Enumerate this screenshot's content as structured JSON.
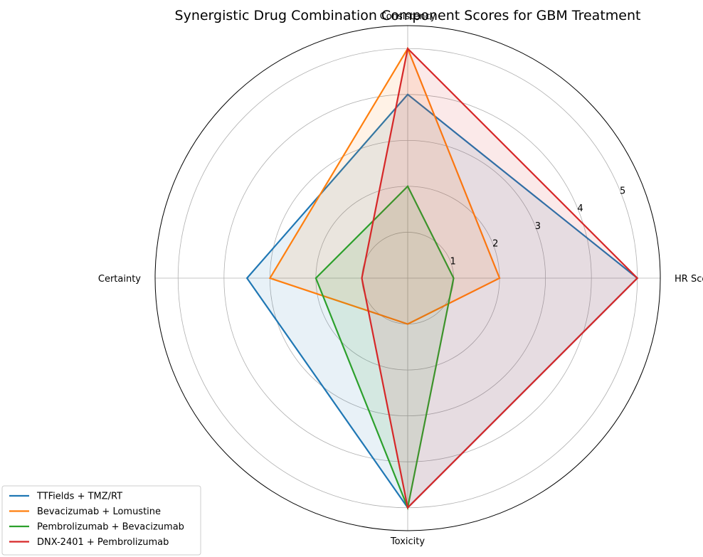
{
  "chart_data": {
    "type": "radar",
    "title": "Synergistic Drug Combination Component Scores for GBM Treatment",
    "axes": [
      "HR Score",
      "Consistency",
      "Certainty",
      "Toxicity"
    ],
    "rticks": [
      "1",
      "2",
      "3",
      "4",
      "5"
    ],
    "rlim": [
      0,
      5.5
    ],
    "grid": true,
    "legend_placement": "lower-left",
    "series": [
      {
        "name": "TTFields + TMZ/RT",
        "color": "#1f77b4",
        "values": [
          5,
          4,
          3.5,
          5
        ]
      },
      {
        "name": "Bevacizumab + Lomustine",
        "color": "#ff7f0e",
        "values": [
          2,
          5,
          3,
          1
        ]
      },
      {
        "name": "Pembrolizumab + Bevacizumab",
        "color": "#2ca02c",
        "values": [
          1,
          2,
          2,
          5
        ]
      },
      {
        "name": "DNX-2401 + Pembrolizumab",
        "color": "#d62728",
        "values": [
          5,
          5,
          1,
          5
        ]
      }
    ]
  }
}
